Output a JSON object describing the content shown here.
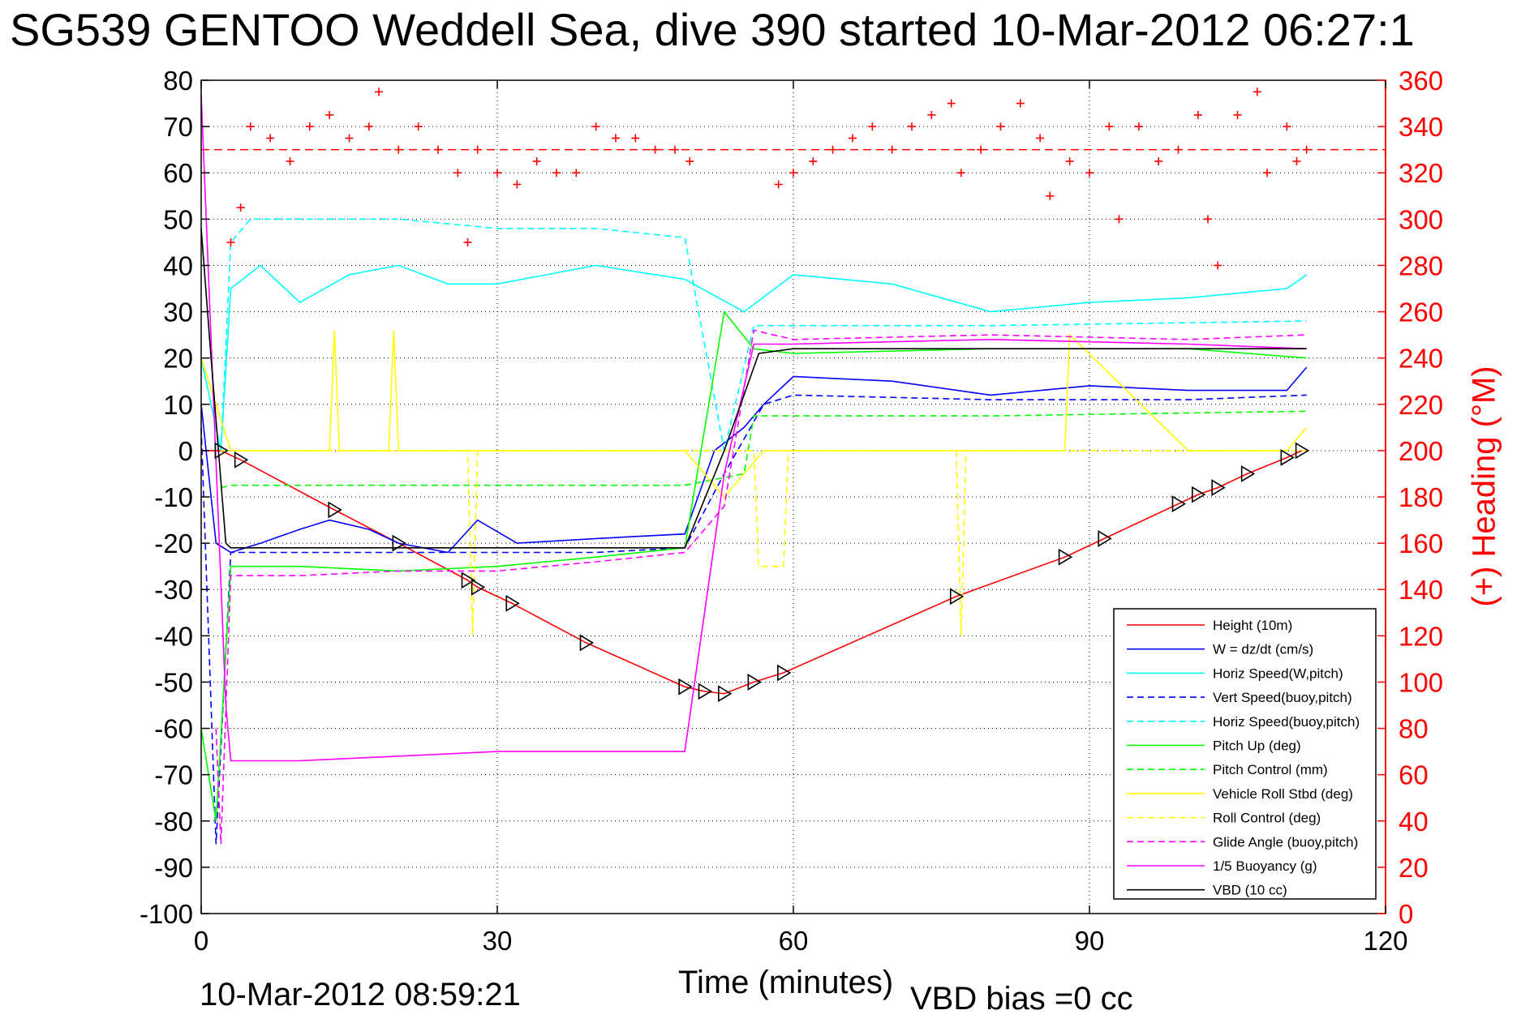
{
  "title": "SG539 GENTOO Weddell Sea, dive 390 started 10-Mar-2012 06:27:1",
  "footer": {
    "date": "10-Mar-2012 08:59:21",
    "xlabel": "Time (minutes)",
    "vbd_bias": "VBD bias =0 cc"
  },
  "chart_data": {
    "type": "line",
    "title": "SG539 GENTOO Weddell Sea, dive 390 started 10-Mar-2012 06:27:1",
    "xlabel": "Time (minutes)",
    "ylabel": "",
    "ylabel_right": "(+) Heading (°M)",
    "xlim": [
      0,
      120
    ],
    "ylim": [
      -100,
      80
    ],
    "ylim_right": [
      0,
      360
    ],
    "xticks": [
      "0",
      "30",
      "60",
      "90",
      "120"
    ],
    "yticks": [
      "80",
      "70",
      "60",
      "50",
      "40",
      "30",
      "20",
      "10",
      "0",
      "-10",
      "-20",
      "-30",
      "-40",
      "-50",
      "-60",
      "-70",
      "-80",
      "-90",
      "-100"
    ],
    "yticks_right": [
      "360",
      "340",
      "320",
      "300",
      "280",
      "260",
      "240",
      "220",
      "200",
      "180",
      "160",
      "140",
      "120",
      "100",
      "80",
      "60",
      "40",
      "20",
      "0"
    ],
    "grid": true,
    "legend_position": "bottom-right",
    "reference_heading": 330,
    "colors": {
      "red": "#ff0000",
      "blue": "#0000ff",
      "cyan": "#00ffff",
      "green": "#00ff00",
      "yellow": "#ffff00",
      "magenta": "#ff00ff",
      "black": "#000000",
      "axis_right": "#ff0000"
    },
    "series": [
      {
        "name": "Height (10m)",
        "color": "#ff0000",
        "dash": false,
        "x": [
          0,
          2,
          4,
          13.5,
          20,
          27,
          28,
          31.5,
          39,
          49,
          51,
          53,
          56,
          59,
          76.5,
          87.5,
          91.5,
          99,
          101,
          103,
          106,
          110,
          111.5
        ],
        "y": [
          0,
          0,
          -2,
          -12.8,
          -20,
          -28,
          -29.5,
          -33,
          -41.5,
          -51,
          -52,
          -52.5,
          -50,
          -48,
          -31.5,
          -23,
          -19,
          -11.5,
          -9.5,
          -8,
          -5,
          -1.5,
          0
        ]
      },
      {
        "name": "W = dz/dt (cm/s)",
        "color": "#0000ff",
        "dash": false,
        "x": [
          0,
          1.5,
          3,
          6,
          10,
          13,
          17,
          20,
          25,
          28,
          32,
          40,
          49,
          52,
          55,
          57,
          60,
          70,
          80,
          90,
          100,
          110,
          112
        ],
        "y": [
          10,
          -20,
          -22,
          -20,
          -17,
          -15,
          -17,
          -20,
          -22,
          -15,
          -20,
          -19,
          -18,
          0,
          5,
          10,
          16,
          15,
          12,
          14,
          13,
          13,
          18
        ]
      },
      {
        "name": "Horiz Speed(W,pitch)",
        "color": "#00ffff",
        "dash": false,
        "x": [
          0,
          2,
          3,
          6,
          10,
          15,
          20,
          25,
          30,
          40,
          49,
          55,
          60,
          70,
          80,
          90,
          100,
          110,
          112
        ],
        "y": [
          20,
          0,
          35,
          40,
          32,
          38,
          40,
          36,
          36,
          40,
          37,
          30,
          38,
          36,
          30,
          32,
          33,
          35,
          38
        ]
      },
      {
        "name": "Vert Speed(buoy,pitch)",
        "color": "#0000ff",
        "dash": true,
        "x": [
          0,
          1.5,
          3,
          10,
          20,
          30,
          40,
          49,
          53,
          57,
          60,
          80,
          100,
          112
        ],
        "y": [
          5,
          -85,
          -22,
          -22,
          -22,
          -22,
          -22,
          -21,
          -5,
          10,
          12,
          11,
          11,
          12
        ]
      },
      {
        "name": "Horiz Speed(buoy,pitch)",
        "color": "#00ffff",
        "dash": true,
        "x": [
          2,
          3,
          5,
          20,
          30,
          40,
          49,
          53,
          56,
          80,
          112
        ],
        "y": [
          0,
          45,
          50,
          50,
          48,
          48,
          46,
          0,
          27,
          27,
          28
        ]
      },
      {
        "name": "Pitch Up (deg)",
        "color": "#00ff00",
        "dash": false,
        "x": [
          0,
          1.5,
          3,
          10,
          20,
          30,
          40,
          49,
          53,
          56,
          60,
          80,
          100,
          112
        ],
        "y": [
          -60,
          -80,
          -25,
          -25,
          -26,
          -25,
          -23,
          -21,
          30,
          22,
          21,
          22,
          22,
          20
        ]
      },
      {
        "name": "Pitch Control (mm)",
        "color": "#00ff00",
        "dash": true,
        "x": [
          2,
          3,
          20,
          40,
          49,
          55,
          56,
          80,
          112
        ],
        "y": [
          -8,
          -7.5,
          -7.5,
          -7.5,
          -7.5,
          -5,
          7.5,
          7.5,
          8.5
        ]
      },
      {
        "name": "Vehicle Roll Stbd (deg)",
        "color": "#ffff00",
        "dash": false,
        "x": [
          0,
          3,
          10,
          13,
          13.5,
          14,
          19,
          19.5,
          20,
          30,
          49,
          53,
          57,
          60,
          80,
          87.5,
          88,
          100,
          110,
          112
        ],
        "y": [
          20,
          0,
          0,
          0,
          26,
          0,
          0,
          26,
          0,
          0,
          0,
          -10,
          0,
          0,
          0,
          0,
          25,
          0,
          0,
          5
        ]
      },
      {
        "name": "Roll Control (deg)",
        "color": "#ffff00",
        "dash": true,
        "x": [
          2,
          3,
          27,
          27.5,
          28,
          49,
          56,
          56.5,
          59,
          59.5,
          76.5,
          77,
          77.5,
          112
        ],
        "y": [
          0,
          0,
          0,
          -40,
          0,
          0,
          0,
          -25,
          -25,
          0,
          0,
          -40,
          0,
          0
        ]
      },
      {
        "name": "Glide Angle (buoy,pitch)",
        "color": "#ff00ff",
        "dash": true,
        "x": [
          1.5,
          2,
          3,
          10,
          20,
          30,
          40,
          49,
          53,
          56,
          60,
          80,
          100,
          112
        ],
        "y": [
          -60,
          -85,
          -27,
          -27,
          -26,
          -26,
          -24,
          -22,
          -12,
          26,
          24,
          25,
          24,
          25
        ]
      },
      {
        "name": "1/5 Buoyancy (g)",
        "color": "#ff00ff",
        "dash": false,
        "x": [
          0,
          2.5,
          3,
          10,
          20,
          30,
          40,
          49,
          53,
          56,
          60,
          80,
          100,
          112
        ],
        "y": [
          77,
          -55,
          -67,
          -67,
          -66,
          -65,
          -65,
          -65,
          -5,
          23,
          23,
          24,
          23,
          22
        ]
      },
      {
        "name": "VBD (10 cc)",
        "color": "#000000",
        "dash": false,
        "x": [
          0,
          1,
          2.5,
          3,
          10,
          20,
          30,
          40,
          49,
          53,
          56.5,
          60,
          80,
          100,
          112
        ],
        "y": [
          48,
          20,
          -20,
          -21,
          -21,
          -21,
          -21,
          -21,
          -21,
          0,
          21,
          22,
          22,
          22,
          22
        ]
      }
    ],
    "heading": {
      "name": "(+) Heading (°M)",
      "color": "#ff0000",
      "marker": "+",
      "x": [
        3,
        4,
        5,
        7,
        9,
        11,
        13,
        15,
        17,
        18,
        20,
        22,
        24,
        26,
        27,
        28,
        30,
        32,
        34,
        36,
        38,
        40,
        42,
        44,
        46,
        48,
        49.5,
        58.5,
        60,
        62,
        64,
        66,
        68,
        70,
        72,
        74,
        76,
        77,
        79,
        81,
        83,
        85,
        86,
        88,
        90,
        92,
        93,
        95,
        97,
        99,
        101,
        102,
        103,
        105,
        107,
        108,
        110,
        111,
        112
      ],
      "y": [
        290,
        305,
        340,
        335,
        325,
        340,
        345,
        335,
        340,
        355,
        330,
        340,
        330,
        320,
        290,
        330,
        320,
        315,
        325,
        320,
        320,
        340,
        335,
        335,
        330,
        330,
        325,
        315,
        320,
        325,
        330,
        335,
        340,
        330,
        340,
        345,
        350,
        320,
        330,
        340,
        350,
        335,
        310,
        325,
        320,
        340,
        300,
        340,
        325,
        330,
        345,
        300,
        280,
        345,
        355,
        320,
        340,
        325,
        330
      ]
    }
  },
  "legend": [
    {
      "label": "Height (10m)",
      "color": "#ff0000",
      "dash": false
    },
    {
      "label": "W = dz/dt (cm/s)",
      "color": "#0000ff",
      "dash": false
    },
    {
      "label": "Horiz Speed(W,pitch)",
      "color": "#00ffff",
      "dash": false
    },
    {
      "label": "Vert Speed(buoy,pitch)",
      "color": "#0000ff",
      "dash": true
    },
    {
      "label": "Horiz Speed(buoy,pitch)",
      "color": "#00ffff",
      "dash": true
    },
    {
      "label": "Pitch Up (deg)",
      "color": "#00ff00",
      "dash": false
    },
    {
      "label": "Pitch Control (mm)",
      "color": "#00ff00",
      "dash": true
    },
    {
      "label": "Vehicle Roll Stbd (deg)",
      "color": "#ffff00",
      "dash": false
    },
    {
      "label": "Roll Control (deg)",
      "color": "#ffff00",
      "dash": true
    },
    {
      "label": "Glide Angle (buoy,pitch)",
      "color": "#ff00ff",
      "dash": true
    },
    {
      "label": "1/5 Buoyancy (g)",
      "color": "#ff00ff",
      "dash": false
    },
    {
      "label": "VBD (10 cc)",
      "color": "#000000",
      "dash": false
    }
  ]
}
